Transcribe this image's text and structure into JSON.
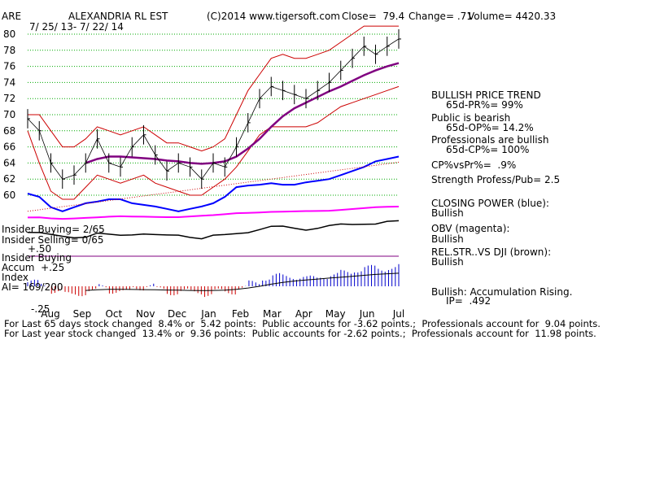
{
  "header": {
    "ticker": "ARE",
    "company": "ALEXANDRIA RL EST",
    "copyright": "(C)2014 www.tigersoft.com",
    "close": "Close=  79.4",
    "change": "Change= .71",
    "volume": "Volume= 4420.33",
    "date_range": "7/ 25/ 13- 7/ 22/ 14"
  },
  "colors": {
    "price_bar": "#000000",
    "bands": "#cc0000",
    "ma": "#800080",
    "closing_power": "#0000ff",
    "obv": "#ff00ff",
    "relstr": "#800000",
    "accum_pos": "#0000cc",
    "accum_neg": "#cc0000",
    "grid": "#00aa00"
  },
  "chart_data": {
    "type": "line",
    "title": "ALEXANDRIA RL EST",
    "price_ylim": [
      59,
      81
    ],
    "y_ticks": [
      "80",
      "78",
      "76",
      "74",
      "72",
      "70",
      "68",
      "66",
      "64",
      "62",
      "60"
    ],
    "months": [
      "Aug",
      "Sep",
      "Oct",
      "Nov",
      "Dec",
      "Jan",
      "Feb",
      "Mar",
      "Apr",
      "May",
      "Jun",
      "Jul"
    ],
    "price_close": [
      69.5,
      68.0,
      64.0,
      62.0,
      62.5,
      64.0,
      67.0,
      64.0,
      63.5,
      66.0,
      67.5,
      65.0,
      63.0,
      64.0,
      63.5,
      62.0,
      64.0,
      63.5,
      66.0,
      69.0,
      72.0,
      73.5,
      73.0,
      72.5,
      72.0,
      73.0,
      74.0,
      75.5,
      77.0,
      78.5,
      77.5,
      78.5,
      79.4
    ],
    "ma_65d": [
      null,
      null,
      null,
      null,
      null,
      64.0,
      64.5,
      64.8,
      64.8,
      64.7,
      64.6,
      64.5,
      64.3,
      64.2,
      64.0,
      63.9,
      64.0,
      64.2,
      64.8,
      65.8,
      67.0,
      68.5,
      69.8,
      70.8,
      71.5,
      72.2,
      72.9,
      73.5,
      74.2,
      74.9,
      75.5,
      76.0,
      76.4
    ],
    "upper_band": [
      70.0,
      70.0,
      68.0,
      66.0,
      66.0,
      67.0,
      68.5,
      68.0,
      67.5,
      68.0,
      68.5,
      67.5,
      66.5,
      66.5,
      66.0,
      65.5,
      66.0,
      67.0,
      70.0,
      73.0,
      75.0,
      77.0,
      77.5,
      77.0,
      77.0,
      77.5,
      78.0,
      79.0,
      80.0,
      81.0,
      81.0,
      81.0,
      81.0
    ],
    "lower_band": [
      68.0,
      64.0,
      60.5,
      59.5,
      59.5,
      61.0,
      62.5,
      62.0,
      61.5,
      62.0,
      62.5,
      61.5,
      61.0,
      60.5,
      60.0,
      60.0,
      61.0,
      62.0,
      63.5,
      65.5,
      67.5,
      68.5,
      68.5,
      68.5,
      68.5,
      69.0,
      70.0,
      71.0,
      71.5,
      72.0,
      72.5,
      73.0,
      73.5
    ],
    "closing_power": [
      60.2,
      59.8,
      58.5,
      58.0,
      58.5,
      59.0,
      59.2,
      59.5,
      59.5,
      59.0,
      58.8,
      58.6,
      58.3,
      58.0,
      58.3,
      58.6,
      59.0,
      59.8,
      61.0,
      61.2,
      61.3,
      61.5,
      61.3,
      61.3,
      61.6,
      61.8,
      62.0,
      62.5,
      63.0,
      63.5,
      64.2,
      64.5,
      64.8
    ]
  },
  "indicators": {
    "title": "BULLISH PRICE TREND",
    "pr": "65d-PR%= 99%",
    "public": "Public is bearish",
    "op": "65d-OP%= 14.2%",
    "pros": "Professionals are bullish",
    "cp": "65d-CP%= 100%",
    "cpvspr": "CP%vsPr%=  .9%",
    "strength": "Strength Profess/Pub= 2.5",
    "closing_power_label": "CLOSING POWER (blue):",
    "closing_power_val": "Bullish",
    "obv_label": "OBV (magenta):",
    "obv_val": "Bullish",
    "relstr_label": "REL.STR..VS DJI (brown):",
    "relstr_val": "Bullish",
    "accum": "Bullish: Accumulation Rising.",
    "ip": "IP=  .492"
  },
  "lower_panel": {
    "insider_buying": "Insider Buying= 2/65",
    "insider_selling": "Insider Selling= 0/65",
    "plus50": "+.50",
    "insider_buying2": "Insider Buying",
    "accum": "Accum  +.25",
    "index": "Index",
    "ai": "AI= 169/200",
    "minus25": "-.25"
  },
  "footer": {
    "line1": "For Last 65 days stock changed  8.4% or  5.42 points:  Public accounts for -3.62 points.;  Professionals account for  9.04 points.",
    "line2": "For Last year stock changed  13.4% or  9.36 points:  Public accounts for -2.62 points.;  Professionals account for  11.98 points."
  }
}
